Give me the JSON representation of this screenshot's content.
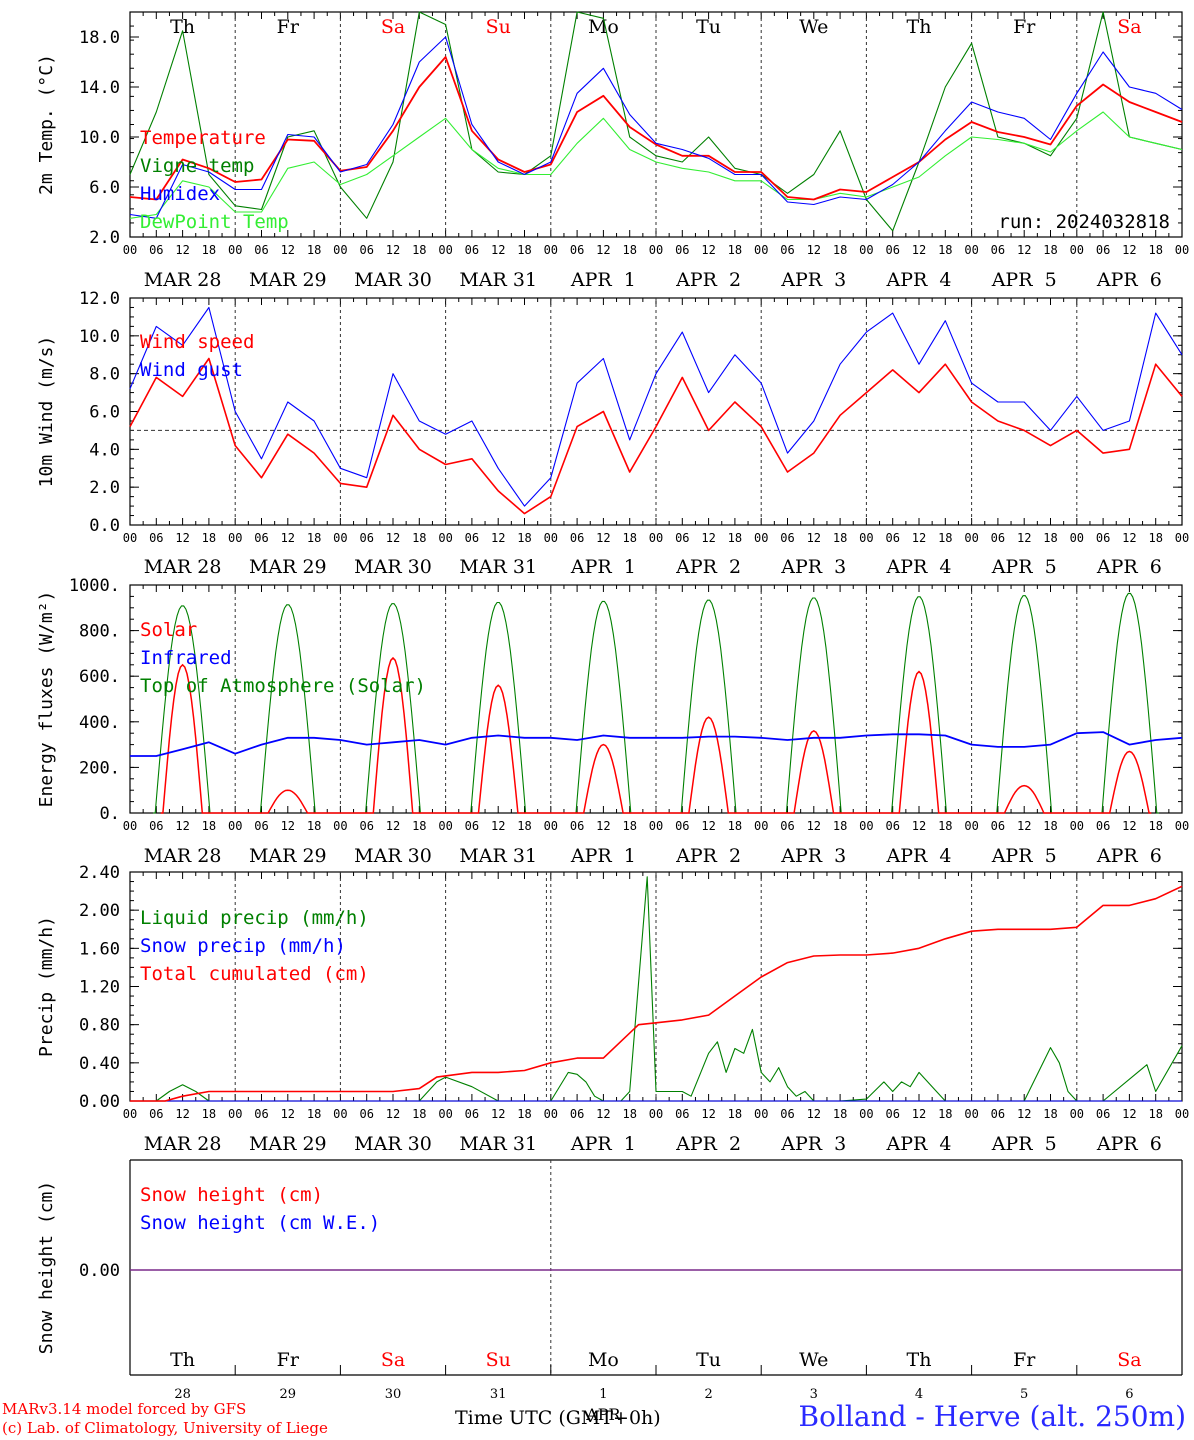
{
  "credits": {
    "model_line": "MARv3.14 model forced by GFS",
    "lab_line": "(c) Lab. of Climatology, University of Liege"
  },
  "footer": {
    "x_axis_label": "Time UTC (GMT+0h)",
    "station": "Bolland - Herve (alt. 250m)"
  },
  "colors": {
    "red": "#ff0000",
    "green": "#008000",
    "blue": "#0000ff",
    "light_green": "#33ee33",
    "grid": "#555555",
    "snow_line": "#7a2a8a"
  },
  "time_axis": {
    "hour_ticks": [
      "00",
      "06",
      "12",
      "18"
    ],
    "last_tick": "00",
    "date_labels": [
      "MAR 28",
      "MAR 29",
      "MAR 30",
      "MAR 31",
      "APR  1",
      "APR  2",
      "APR  3",
      "APR  4",
      "APR  5",
      "APR  6"
    ],
    "weekdays": [
      "Th",
      "Fr",
      "Sa",
      "Su",
      "Mo",
      "Tu",
      "We",
      "Th",
      "Fr",
      "Sa"
    ],
    "weekend_flags": [
      false,
      false,
      true,
      true,
      false,
      false,
      false,
      false,
      false,
      true
    ],
    "day_numbers": [
      "28",
      "29",
      "30",
      "31",
      "1",
      "2",
      "3",
      "4",
      "5",
      "6"
    ],
    "month_label": "APR"
  },
  "chart_data": [
    {
      "type": "line",
      "ylabel": "2m Temp. (°C)",
      "ylim": [
        2.0,
        20.0
      ],
      "yticks": [
        "2.0",
        "6.0",
        "10.0",
        "14.0",
        "18.0"
      ],
      "run_label": "run: 2024032818",
      "x_unit": "hours since MAR 28 00 UTC",
      "series": [
        {
          "name": "Temperature",
          "color": "#ff0000",
          "x": [
            0,
            6,
            12,
            18,
            24,
            30,
            36,
            42,
            48,
            54,
            60,
            66,
            72,
            78,
            84,
            90,
            96,
            102,
            108,
            114,
            120,
            126,
            132,
            138,
            144,
            150,
            156,
            162,
            168,
            174,
            180,
            186,
            192,
            198,
            204,
            210,
            216,
            222,
            228,
            234,
            240
          ],
          "values": [
            5.2,
            5.0,
            8.2,
            7.5,
            6.4,
            6.6,
            9.8,
            9.7,
            7.3,
            7.6,
            10.5,
            14.0,
            16.4,
            10.5,
            8.2,
            7.2,
            7.8,
            12.0,
            13.3,
            10.8,
            9.4,
            8.5,
            8.5,
            7.2,
            7.2,
            5.2,
            5.0,
            5.8,
            5.6,
            6.8,
            8.0,
            9.8,
            11.2,
            10.4,
            10.0,
            9.4,
            12.5,
            14.2,
            12.8,
            12.0,
            11.2
          ]
        },
        {
          "name": "Vigne temp",
          "color": "#008000",
          "x": [
            0,
            6,
            12,
            18,
            24,
            30,
            36,
            42,
            48,
            54,
            60,
            66,
            72,
            78,
            84,
            90,
            96,
            102,
            108,
            114,
            120,
            126,
            132,
            138,
            144,
            150,
            156,
            162,
            168,
            174,
            180,
            186,
            192,
            198,
            204,
            210,
            216,
            222,
            228,
            234,
            240
          ],
          "values": [
            7.0,
            12.0,
            18.5,
            7.0,
            4.5,
            4.2,
            10.0,
            10.5,
            6.0,
            3.5,
            8.0,
            20.5,
            19.0,
            9.0,
            7.2,
            7.0,
            8.5,
            20.5,
            19.5,
            10.0,
            8.5,
            8.0,
            10.0,
            7.5,
            7.0,
            5.5,
            7.0,
            10.5,
            5.0,
            2.5,
            8.0,
            14.0,
            17.5,
            10.0,
            9.5,
            8.5,
            11.5,
            21.0,
            10.0,
            9.5,
            9.0
          ]
        },
        {
          "name": "Humidex",
          "color": "#0000ff",
          "x": [
            0,
            6,
            12,
            18,
            24,
            30,
            36,
            42,
            48,
            54,
            60,
            66,
            72,
            78,
            84,
            90,
            96,
            102,
            108,
            114,
            120,
            126,
            132,
            138,
            144,
            150,
            156,
            162,
            168,
            174,
            180,
            186,
            192,
            198,
            204,
            210,
            216,
            222,
            228,
            234,
            240
          ],
          "values": [
            3.8,
            3.5,
            7.8,
            7.2,
            5.8,
            5.8,
            10.2,
            10.0,
            7.2,
            7.8,
            11.0,
            16.0,
            18.0,
            11.0,
            8.0,
            7.0,
            8.0,
            13.5,
            15.5,
            11.8,
            9.5,
            9.0,
            8.3,
            7.0,
            7.0,
            4.8,
            4.6,
            5.2,
            5.0,
            6.2,
            8.0,
            10.5,
            12.8,
            12.0,
            11.5,
            9.8,
            13.5,
            16.8,
            14.0,
            13.5,
            12.2
          ]
        },
        {
          "name": "DewPoint Temp",
          "color": "#33ee33",
          "x": [
            0,
            6,
            12,
            18,
            24,
            30,
            36,
            42,
            48,
            54,
            60,
            66,
            72,
            78,
            84,
            90,
            96,
            102,
            108,
            114,
            120,
            126,
            132,
            138,
            144,
            150,
            156,
            162,
            168,
            174,
            180,
            186,
            192,
            198,
            204,
            210,
            216,
            222,
            228,
            234,
            240
          ],
          "values": [
            3.5,
            3.8,
            6.5,
            6.0,
            4.0,
            4.0,
            7.5,
            8.0,
            6.2,
            7.0,
            8.5,
            10.0,
            11.5,
            9.0,
            7.5,
            7.0,
            7.0,
            9.5,
            11.5,
            9.0,
            8.0,
            7.5,
            7.2,
            6.5,
            6.5,
            5.0,
            5.0,
            5.5,
            5.2,
            6.0,
            6.8,
            8.5,
            10.0,
            9.8,
            9.5,
            8.8,
            10.5,
            12.0,
            10.0,
            9.5,
            9.0
          ]
        }
      ]
    },
    {
      "type": "line",
      "ylabel": "10m Wind (m/s)",
      "ylim": [
        0.0,
        12.0
      ],
      "yticks": [
        "0.0",
        "2.0",
        "4.0",
        "6.0",
        "8.0",
        "10.0",
        "12.0"
      ],
      "reference_line": 5.0,
      "series": [
        {
          "name": "Wind speed",
          "color": "#ff0000",
          "x": [
            0,
            6,
            12,
            18,
            24,
            30,
            36,
            42,
            48,
            54,
            60,
            66,
            72,
            78,
            84,
            90,
            96,
            102,
            108,
            114,
            120,
            126,
            132,
            138,
            144,
            150,
            156,
            162,
            168,
            174,
            180,
            186,
            192,
            198,
            204,
            210,
            216,
            222,
            228,
            234,
            240
          ],
          "values": [
            5.2,
            7.8,
            6.8,
            8.8,
            4.2,
            2.5,
            4.8,
            3.8,
            2.2,
            2.0,
            5.8,
            4.0,
            3.2,
            3.5,
            1.8,
            0.6,
            1.5,
            5.2,
            6.0,
            2.8,
            5.2,
            7.8,
            5.0,
            6.5,
            5.2,
            2.8,
            3.8,
            5.8,
            7.0,
            8.2,
            7.0,
            8.5,
            6.5,
            5.5,
            5.0,
            4.2,
            5.0,
            3.8,
            4.0,
            8.5,
            6.8
          ]
        },
        {
          "name": "Wind gust",
          "color": "#0000ff",
          "x": [
            0,
            6,
            12,
            18,
            24,
            30,
            36,
            42,
            48,
            54,
            60,
            66,
            72,
            78,
            84,
            90,
            96,
            102,
            108,
            114,
            120,
            126,
            132,
            138,
            144,
            150,
            156,
            162,
            168,
            174,
            180,
            186,
            192,
            198,
            204,
            210,
            216,
            222,
            228,
            234,
            240
          ],
          "values": [
            7.2,
            10.5,
            9.5,
            11.5,
            6.0,
            3.5,
            6.5,
            5.5,
            3.0,
            2.5,
            8.0,
            5.5,
            4.8,
            5.5,
            3.0,
            1.0,
            2.5,
            7.5,
            8.8,
            4.5,
            8.0,
            10.2,
            7.0,
            9.0,
            7.5,
            3.8,
            5.5,
            8.5,
            10.2,
            11.2,
            8.5,
            10.8,
            7.5,
            6.5,
            6.5,
            5.0,
            6.8,
            5.0,
            5.5,
            11.2,
            9.0
          ]
        }
      ]
    },
    {
      "type": "line",
      "ylabel": "Energy fluxes (W/m²)",
      "ylim": [
        0,
        1000
      ],
      "yticks": [
        "0.",
        "200.",
        "400.",
        "600.",
        "800.",
        "1000."
      ],
      "series": [
        {
          "name": "Solar",
          "color": "#ff0000",
          "peak_hour_utc": 12,
          "daily_peaks": [
            650,
            100,
            680,
            560,
            300,
            420,
            360,
            620,
            120,
            270
          ]
        },
        {
          "name": "Infrared",
          "color": "#0000ff",
          "x": [
            0,
            6,
            12,
            18,
            24,
            30,
            36,
            42,
            48,
            54,
            60,
            66,
            72,
            78,
            84,
            90,
            96,
            102,
            108,
            114,
            120,
            126,
            132,
            138,
            144,
            150,
            156,
            162,
            168,
            174,
            180,
            186,
            192,
            198,
            204,
            210,
            216,
            222,
            228,
            234,
            240
          ],
          "values": [
            250,
            250,
            280,
            310,
            260,
            300,
            330,
            330,
            320,
            300,
            310,
            320,
            300,
            330,
            340,
            330,
            330,
            320,
            340,
            330,
            330,
            330,
            335,
            335,
            330,
            320,
            330,
            330,
            340,
            345,
            345,
            340,
            300,
            290,
            290,
            300,
            350,
            355,
            300,
            320,
            330
          ]
        },
        {
          "name": "Top of Atmosphere (Solar)",
          "color": "#008000",
          "peak_hour_utc": 12,
          "day_length_hours": 12.5,
          "daily_peaks": [
            910,
            915,
            920,
            925,
            930,
            935,
            945,
            950,
            955,
            965
          ]
        }
      ]
    },
    {
      "type": "line",
      "ylabel": "Precip (mm/h)",
      "ylim": [
        0.0,
        2.4
      ],
      "yticks": [
        "0.00",
        "0.40",
        "0.80",
        "1.20",
        "1.60",
        "2.00",
        "2.40"
      ],
      "series": [
        {
          "name": "Liquid precip (mm/h)",
          "color": "#008000",
          "x": [
            0,
            6,
            9,
            12,
            15,
            18,
            24,
            48,
            66,
            70,
            72,
            78,
            84,
            88,
            90,
            96,
            100,
            102,
            104,
            106,
            108,
            112,
            114,
            118,
            120,
            126,
            128,
            132,
            134,
            136,
            138,
            140,
            142,
            144,
            146,
            148,
            150,
            152,
            154,
            156,
            158,
            160,
            162,
            168,
            172,
            174,
            176,
            178,
            180,
            184,
            186,
            188,
            192,
            204,
            210,
            212,
            214,
            216,
            222,
            232,
            234,
            240
          ],
          "values": [
            0,
            0,
            0.1,
            0.17,
            0.1,
            0,
            0,
            0,
            0,
            0.2,
            0.25,
            0.15,
            0,
            0,
            0,
            0,
            0.3,
            0.28,
            0.2,
            0.05,
            0,
            0,
            0.1,
            2.35,
            0.1,
            0.1,
            0.05,
            0.5,
            0.62,
            0.3,
            0.55,
            0.5,
            0.75,
            0.3,
            0.2,
            0.35,
            0.15,
            0.05,
            0.1,
            0,
            0,
            0,
            0,
            0.02,
            0.2,
            0.1,
            0.2,
            0.15,
            0.3,
            0.1,
            0,
            0,
            0,
            0,
            0.56,
            0.4,
            0.1,
            0,
            0,
            0.38,
            0.1,
            0.58
          ]
        },
        {
          "name": "Snow precip (mm/h)",
          "color": "#0000ff",
          "x": [
            0,
            240
          ],
          "values": [
            0,
            0
          ]
        },
        {
          "name": "Total cumulated (cm)",
          "color": "#ff0000",
          "x": [
            0,
            8,
            12,
            18,
            24,
            48,
            60,
            66,
            70,
            78,
            84,
            90,
            96,
            102,
            108,
            116,
            120,
            126,
            132,
            138,
            144,
            150,
            156,
            162,
            168,
            174,
            180,
            186,
            192,
            198,
            204,
            210,
            216,
            222,
            228,
            234,
            240
          ],
          "values": [
            0,
            0,
            0.05,
            0.1,
            0.1,
            0.1,
            0.1,
            0.13,
            0.25,
            0.3,
            0.3,
            0.32,
            0.4,
            0.45,
            0.45,
            0.8,
            0.82,
            0.85,
            0.9,
            1.1,
            1.3,
            1.45,
            1.52,
            1.53,
            1.53,
            1.55,
            1.6,
            1.7,
            1.78,
            1.8,
            1.8,
            1.8,
            1.82,
            2.05,
            2.05,
            2.12,
            2.25
          ]
        }
      ]
    },
    {
      "type": "line",
      "ylabel": "Snow height (cm)",
      "yticks": [
        "0.00"
      ],
      "series": [
        {
          "name": "Snow height (cm)",
          "color": "#ff0000",
          "x": [
            0,
            240
          ],
          "values": [
            0,
            0
          ]
        },
        {
          "name": "Snow height (cm W.E.)",
          "color": "#0000ff",
          "x": [
            0,
            240
          ],
          "values": [
            0,
            0
          ]
        }
      ]
    }
  ]
}
